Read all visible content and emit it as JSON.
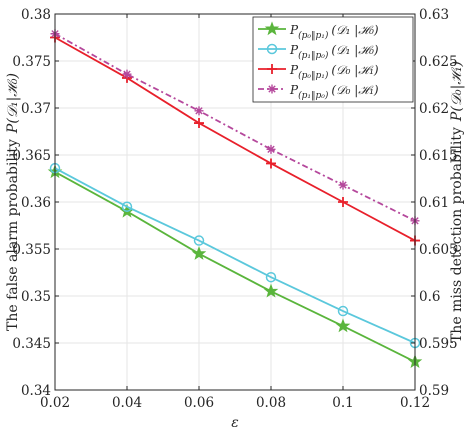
{
  "chart_data": {
    "type": "line",
    "x": [
      0.02,
      0.04,
      0.06,
      0.08,
      0.1,
      0.12
    ],
    "xlabel": "ε",
    "ylabel": "The false alarm probability",
    "ylabel_math": "P(𝒟₁|ℋ₀)",
    "ylabel_right": "The miss detection probability",
    "ylabel_right_math": "P(𝒟₀|ℋ₁)",
    "xlim": [
      0.02,
      0.12
    ],
    "ylim": [
      0.34,
      0.38
    ],
    "ylim_right": [
      0.59,
      0.63
    ],
    "x_ticks": [
      "0.02",
      "0.04",
      "0.06",
      "0.08",
      "0.1",
      "0.12"
    ],
    "y_ticks": [
      "0.34",
      "0.345",
      "0.35",
      "0.355",
      "0.36",
      "0.365",
      "0.37",
      "0.375",
      "0.38"
    ],
    "y_ticks_right": [
      "0.59",
      "0.595",
      "0.6",
      "0.605",
      "0.61",
      "0.615",
      "0.62",
      "0.625",
      "0.63"
    ],
    "grid": true,
    "legend_position": "top-right",
    "series": [
      {
        "name": "P_(p0||p1) (𝒟₁|ℋ₀)",
        "legend": {
          "sub": "(p₀‖p₁)",
          "arg": "(𝒟₁ |ℋ₀)"
        },
        "axis": "left",
        "color": "#5ab53c",
        "marker": "star",
        "dash": "",
        "values": [
          0.3632,
          0.359,
          0.3545,
          0.3505,
          0.3468,
          0.343
        ]
      },
      {
        "name": "P_(p1||p0) (𝒟₁|ℋ₀)",
        "legend": {
          "sub": "(p₁‖p₀)",
          "arg": "(𝒟₁ |ℋ₀)"
        },
        "axis": "left",
        "color": "#5bc8dc",
        "marker": "circle",
        "dash": "",
        "values": [
          0.3636,
          0.3595,
          0.3559,
          0.352,
          0.3484,
          0.345
        ]
      },
      {
        "name": "P_(p0||p1) (𝒟₀|ℋ₁)",
        "legend": {
          "sub": "(p₀‖p₁)",
          "arg": "(𝒟₀ |ℋ₁)"
        },
        "axis": "right",
        "color": "#e8202b",
        "marker": "plus",
        "dash": "",
        "values": [
          0.6275,
          0.6232,
          0.6184,
          0.6141,
          0.61,
          0.6059
        ]
      },
      {
        "name": "P_(p1||p0) (𝒟₀|ℋ₁)",
        "legend": {
          "sub": "(p₁‖p₀)",
          "arg": "(𝒟₀ |ℋ₁)"
        },
        "axis": "right",
        "color": "#b5489c",
        "marker": "asterisk",
        "dash": "6 3 2 3",
        "values": [
          0.6279,
          0.6236,
          0.6197,
          0.6156,
          0.6118,
          0.608
        ]
      }
    ]
  }
}
